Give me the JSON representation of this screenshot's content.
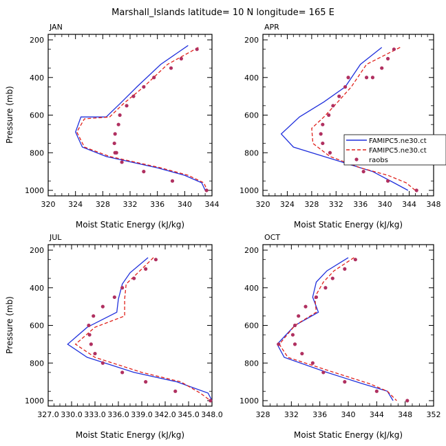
{
  "figure_title": "Marshall_Islands   latitude= 10 N longitude= 165 E",
  "legend": {
    "entries": [
      "FAMIPC5.ne30.ct",
      "FAMIPC5.ne30.ct",
      "raobs"
    ]
  },
  "colors": {
    "model1": "#1f2fdc",
    "model2": "#e0201a",
    "obs": "#b03060"
  },
  "chart_data": [
    {
      "type": "line",
      "panel": "JAN",
      "title": "JAN",
      "xlabel": "Moist Static Energy (kJ/kg)",
      "ylabel": "Pressure (mb)",
      "xlim": [
        320,
        344
      ],
      "ylim": [
        1000,
        200
      ],
      "xticks": [
        320,
        324,
        328,
        332,
        336,
        340,
        344
      ],
      "xtick_labels": [
        "320",
        "324",
        "328",
        "332",
        "336",
        "340",
        "344"
      ],
      "yticks": [
        200,
        400,
        600,
        800,
        1000
      ],
      "ytick_labels": [
        "200",
        "400",
        "600",
        "800",
        "1000"
      ],
      "series": [
        {
          "name": "FAMIPC5.ne30.ct",
          "style": "solid",
          "x": [
            340.5,
            336.5,
            333,
            330.5,
            328.5,
            324.8,
            324,
            325,
            328.5,
            336,
            340,
            342.5,
            343
          ],
          "y": [
            230,
            330,
            450,
            540,
            610,
            610,
            690,
            770,
            820,
            880,
            920,
            960,
            1000
          ]
        },
        {
          "name": "FAMIPC5.ne30.ct",
          "style": "dashed",
          "x": [
            342,
            337.5,
            334,
            331,
            329,
            325.3,
            324.2,
            325.3,
            329,
            336.5,
            340.5,
            342.8,
            343.3
          ],
          "y": [
            240,
            330,
            450,
            540,
            610,
            620,
            690,
            770,
            820,
            880,
            920,
            960,
            1000
          ]
        },
        {
          "name": "raobs",
          "style": "points",
          "x": [
            341.8,
            339.5,
            338,
            335.5,
            334,
            332.5,
            331.5,
            330.5,
            330.3,
            329.8,
            329.7,
            329.8,
            330,
            330.8,
            334,
            338.2,
            343.2
          ],
          "y": [
            250,
            300,
            350,
            400,
            450,
            500,
            550,
            600,
            650,
            700,
            750,
            800,
            800,
            850,
            900,
            950,
            1000
          ]
        }
      ]
    },
    {
      "type": "line",
      "panel": "APR",
      "title": "APR",
      "xlabel": "Moist Static Energy (kJ/kg)",
      "ylabel": "",
      "xlim": [
        320,
        348
      ],
      "ylim": [
        1000,
        200
      ],
      "xticks": [
        320,
        324,
        328,
        332,
        336,
        340,
        344,
        348
      ],
      "xtick_labels": [
        "320",
        "324",
        "328",
        "332",
        "336",
        "340",
        "344",
        "348"
      ],
      "yticks": [
        200,
        400,
        600,
        800,
        1000
      ],
      "ytick_labels": [
        "200",
        "400",
        "600",
        "800",
        "1000"
      ],
      "series": [
        {
          "name": "FAMIPC5.ne30.ct",
          "style": "solid",
          "x": [
            339.5,
            336,
            333.5,
            330,
            326,
            323,
            325,
            333,
            338,
            341.5,
            343.8
          ],
          "y": [
            240,
            330,
            450,
            530,
            610,
            700,
            770,
            850,
            900,
            960,
            1000
          ]
        },
        {
          "name": "FAMIPC5.ne30.ct",
          "style": "dashed",
          "x": [
            342.5,
            337,
            334.5,
            332,
            330,
            328,
            328.2,
            331,
            336,
            340.5,
            343.5,
            345
          ],
          "y": [
            240,
            330,
            450,
            540,
            610,
            670,
            750,
            820,
            880,
            920,
            960,
            1000
          ]
        },
        {
          "name": "raobs",
          "style": "points",
          "x": [
            341.5,
            340.5,
            339.5,
            338,
            337,
            334,
            333.5,
            332.5,
            331.5,
            330.8,
            329.8,
            329.5,
            329.8,
            331,
            334,
            336.5,
            340.5,
            345.2
          ],
          "y": [
            250,
            300,
            350,
            400,
            400,
            400,
            450,
            500,
            550,
            600,
            650,
            700,
            750,
            800,
            850,
            900,
            950,
            1000
          ]
        }
      ]
    },
    {
      "type": "line",
      "panel": "JUL",
      "title": "JUL",
      "xlabel": "Moist Static Energy (kJ/kg)",
      "ylabel": "Pressure (mb)",
      "xlim": [
        327.0,
        348.0
      ],
      "ylim": [
        1000,
        200
      ],
      "xticks": [
        327.0,
        330.0,
        333.0,
        336.0,
        339.0,
        342.0,
        345.0,
        348.0
      ],
      "xtick_labels": [
        "327.0",
        "330.0",
        "333.0",
        "336.0",
        "339.0",
        "342.0",
        "345.0",
        "348.0"
      ],
      "yticks": [
        200,
        400,
        600,
        800,
        1000
      ],
      "ytick_labels": [
        "200",
        "400",
        "600",
        "800",
        "1000"
      ],
      "series": [
        {
          "name": "FAMIPC5.ne30.ct",
          "style": "solid",
          "x": [
            339.8,
            337.5,
            336.5,
            336,
            335.8,
            332,
            329.5,
            332,
            338,
            343.5,
            347.5,
            348
          ],
          "y": [
            240,
            320,
            380,
            460,
            530,
            610,
            700,
            770,
            850,
            900,
            960,
            1000
          ]
        },
        {
          "name": "FAMIPC5.ne30.ct",
          "style": "dashed",
          "x": [
            340.5,
            338.5,
            337,
            336.8,
            336.8,
            333,
            330.5,
            333,
            339,
            344,
            346.5,
            347.8
          ],
          "y": [
            240,
            320,
            380,
            460,
            550,
            610,
            700,
            770,
            850,
            900,
            960,
            1000
          ]
        },
        {
          "name": "raobs",
          "style": "points",
          "x": [
            340.8,
            339.5,
            338,
            336.5,
            335.5,
            334,
            332.8,
            332.2,
            332.3,
            332.5,
            333,
            334,
            336.5,
            339.5,
            343.3,
            347.8
          ],
          "y": [
            250,
            300,
            350,
            400,
            450,
            500,
            550,
            600,
            650,
            700,
            750,
            800,
            850,
            900,
            950,
            1000
          ]
        }
      ]
    },
    {
      "type": "line",
      "panel": "OCT",
      "title": "OCT",
      "xlabel": "Moist Static Energy (kJ/kg)",
      "ylabel": "",
      "xlim": [
        328,
        352
      ],
      "ylim": [
        1000,
        200
      ],
      "xticks": [
        328,
        332,
        336,
        340,
        344,
        348,
        352
      ],
      "xtick_labels": [
        "328",
        "332",
        "336",
        "340",
        "344",
        "348",
        "352"
      ],
      "yticks": [
        200,
        400,
        600,
        800,
        1000
      ],
      "ytick_labels": [
        "200",
        "400",
        "600",
        "800",
        "1000"
      ],
      "series": [
        {
          "name": "FAMIPC5.ne30.ct",
          "style": "solid",
          "x": [
            340,
            337,
            335.5,
            335,
            335.8,
            332.5,
            330,
            331,
            337,
            342,
            345.5,
            346.3
          ],
          "y": [
            240,
            310,
            370,
            450,
            530,
            600,
            700,
            770,
            850,
            910,
            950,
            1000
          ]
        },
        {
          "name": "FAMIPC5.ne30.ct",
          "style": "dashed",
          "x": [
            340.8,
            338,
            336.5,
            335.3,
            335.5,
            332.5,
            330.3,
            331.5,
            338,
            343,
            345.5,
            346.8
          ],
          "y": [
            240,
            310,
            370,
            450,
            530,
            600,
            700,
            770,
            850,
            910,
            950,
            1000
          ]
        },
        {
          "name": "raobs",
          "style": "points",
          "x": [
            341,
            339.5,
            337.8,
            336.8,
            335.5,
            334,
            333,
            332.5,
            332.2,
            332.5,
            330.2,
            333.5,
            335,
            336.5,
            339.5,
            344,
            348.3
          ],
          "y": [
            250,
            300,
            350,
            400,
            450,
            500,
            550,
            600,
            650,
            700,
            700,
            750,
            800,
            850,
            900,
            950,
            1000
          ]
        }
      ]
    }
  ]
}
